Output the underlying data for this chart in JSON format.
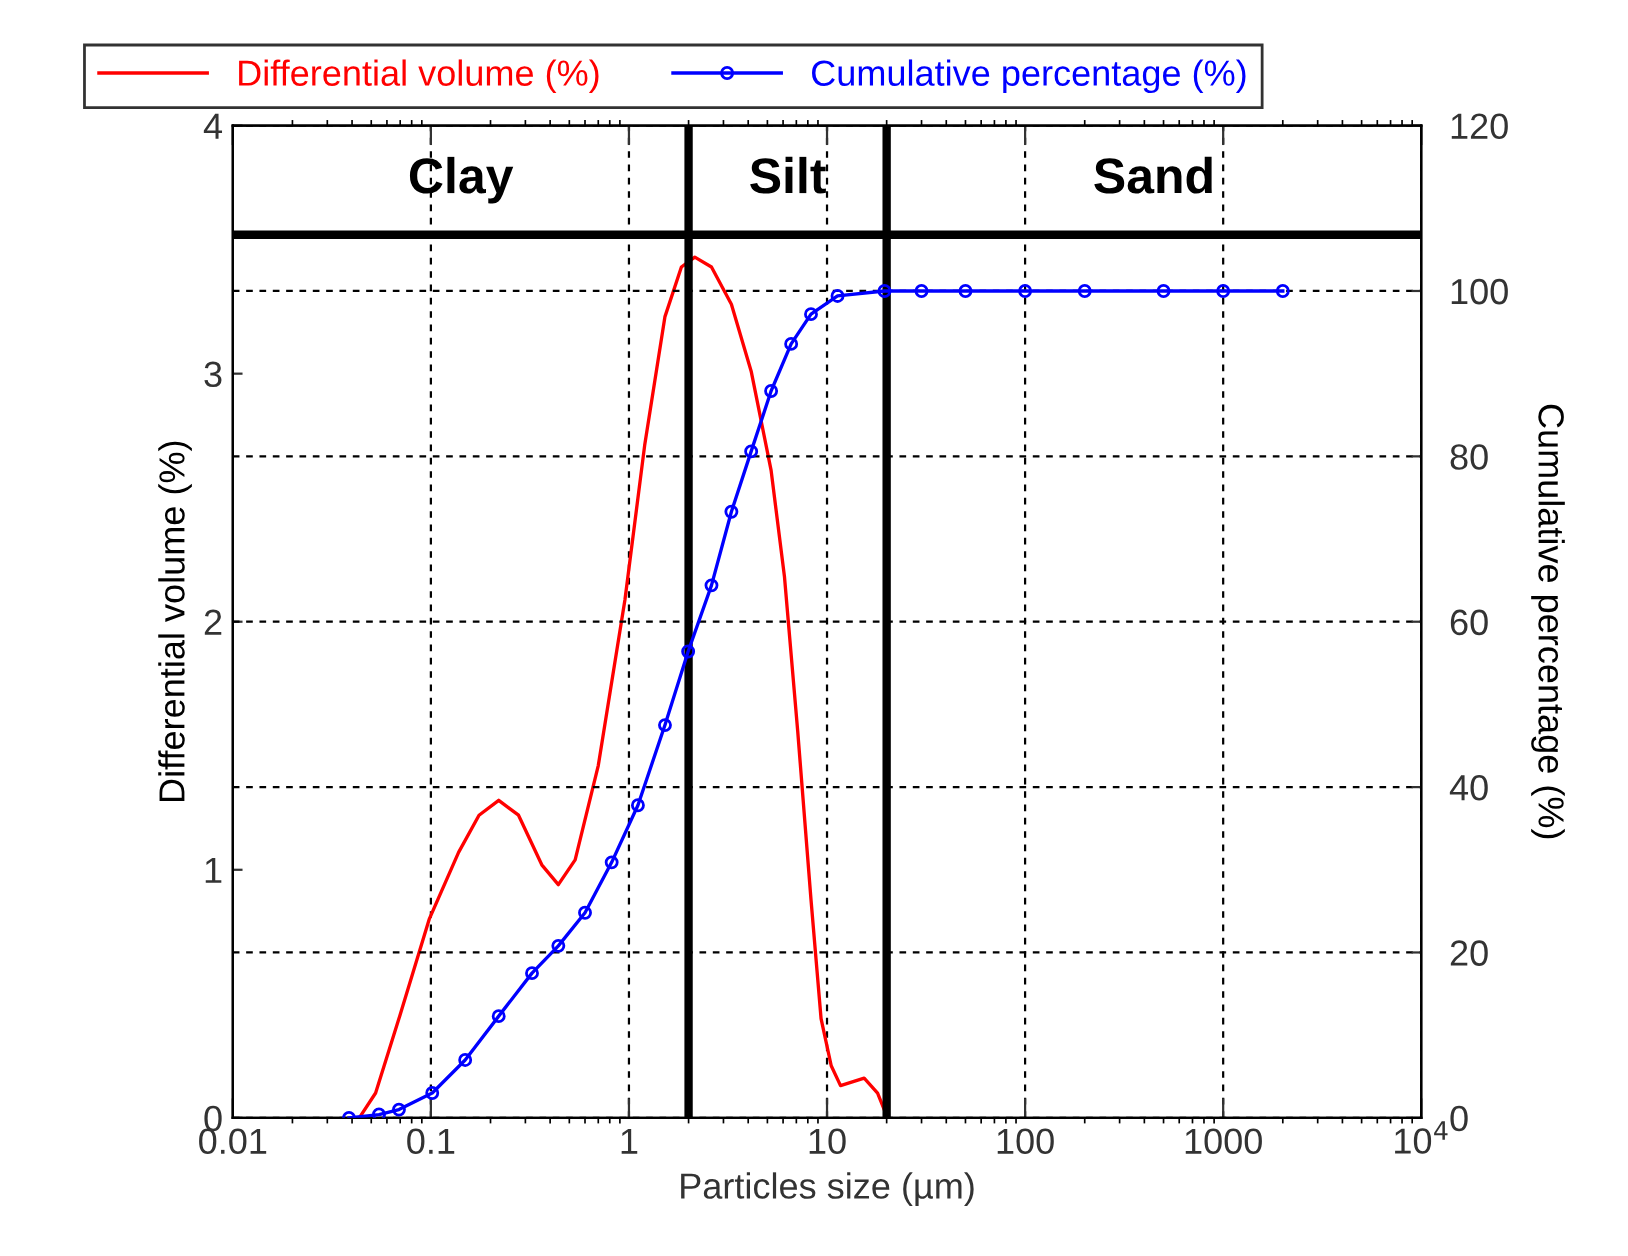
{
  "chart_data": {
    "type": "line",
    "xlabel": "Particles size (µm)",
    "ylabel": "Differential volume (%)",
    "y2label": "Cumulative percentage (%)",
    "log": "x",
    "xlim": [
      0.01,
      10000
    ],
    "xticks": [
      0.01,
      0.1,
      1,
      10,
      100,
      1000,
      {
        "value": 10000,
        "label": "10$^{4}$"
      }
    ],
    "ylim": [
      0,
      4
    ],
    "yticks": [
      0,
      1,
      2,
      3,
      4
    ],
    "y2lim": [
      0,
      120
    ],
    "y2ticks": [
      0,
      20,
      40,
      60,
      80,
      100,
      120
    ],
    "grid": true,
    "legend": "top",
    "line_style": "solid",
    "series": [
      {
        "name": "Differential volume (%)",
        "color": "#ff0000",
        "marker": "none",
        "x": [
          0.0435,
          0.0526,
          0.069,
          0.098,
          0.138,
          0.175,
          0.22,
          0.277,
          0.363,
          0.44,
          0.535,
          0.7,
          0.955,
          1.2,
          1.52,
          1.84,
          2.15,
          2.61,
          3.29,
          4.14,
          5.22,
          6.1,
          7.11,
          8.3,
          9.33,
          10.5,
          11.7,
          15.4,
          18.0,
          20.2
        ],
        "values": [
          0,
          0.1,
          0.4,
          0.8,
          1.07,
          1.22,
          1.28,
          1.22,
          1.02,
          0.94,
          1.04,
          1.42,
          2.09,
          2.71,
          3.23,
          3.43,
          3.47,
          3.43,
          3.28,
          3.01,
          2.61,
          2.18,
          1.56,
          0.88,
          0.4,
          0.21,
          0.13,
          0.16,
          0.1,
          0
        ]
      },
      {
        "name": "Cumulative percentage (%)",
        "color": "#0000ff",
        "marker": "circle",
        "axis": "y2",
        "x": [
          0.0386,
          0.0547,
          0.069,
          0.1016,
          0.149,
          0.22,
          0.324,
          0.44,
          0.6,
          0.818,
          1.11,
          1.52,
          1.99,
          2.61,
          3.29,
          4.14,
          5.22,
          6.59,
          8.3,
          11.3,
          19.5,
          30,
          50,
          100,
          200,
          500,
          1000,
          2000
        ],
        "values": [
          0,
          0.4,
          1.0,
          3.0,
          7.0,
          12.3,
          17.5,
          20.8,
          24.8,
          30.9,
          37.8,
          47.5,
          56.4,
          64.4,
          73.3,
          80.6,
          87.9,
          93.6,
          97.2,
          99.4,
          100,
          100,
          100,
          100,
          100,
          100,
          100,
          100
        ]
      }
    ],
    "ref_lines": [
      {
        "axis": "x",
        "value": 2,
        "label": null,
        "color": "#000000"
      },
      {
        "axis": "x",
        "value": 20,
        "label": null,
        "color": "#000000"
      },
      {
        "axis": "y",
        "value": 3.56,
        "label": null,
        "color": "#000000"
      }
    ],
    "annotations": [
      "Clay",
      "Silt",
      "Sand"
    ]
  }
}
